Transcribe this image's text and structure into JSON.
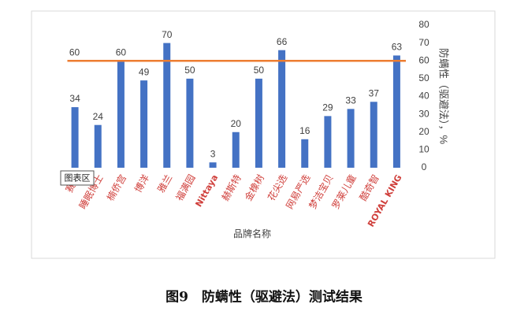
{
  "chart_data": {
    "type": "bar",
    "categories": [
      "赛诺",
      "睡眠博士",
      "楠侨宫",
      "博洋",
      "雅兰",
      "福满园",
      "Nittaya",
      "赫斯特",
      "金橡树",
      "花尖选",
      "网易严选",
      "梦洁宝贝",
      "罗莱儿童",
      "酷奇智",
      "ROYAL KING"
    ],
    "values": [
      34,
      24,
      60,
      49,
      70,
      50,
      3,
      20,
      50,
      66,
      16,
      29,
      33,
      37,
      63
    ],
    "color": "#4472c4",
    "ylim": [
      0,
      80
    ],
    "yticks": [
      0,
      10,
      20,
      30,
      40,
      50,
      60,
      70,
      80
    ],
    "y_axis_side": "right",
    "ylabel": "防螨性（驱避法），%",
    "xlabel": "品牌名称",
    "reference_line": 60,
    "reference_color": "#ed7d31",
    "grid": false
  },
  "tooltip": "图表区",
  "caption": "图9　防螨性（驱避法）测试结果"
}
